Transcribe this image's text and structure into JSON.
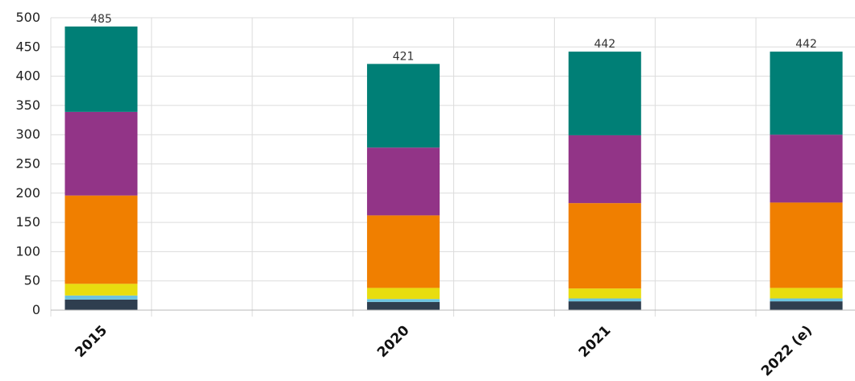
{
  "chart_data": {
    "type": "bar",
    "stacked": true,
    "categories": [
      "2015",
      "2020",
      "2021",
      "2022 (e)"
    ],
    "slot_count": 8,
    "category_slots": [
      0,
      3,
      5,
      7
    ],
    "series": [
      {
        "color": "#2f3e4f",
        "values": [
          18,
          14,
          15,
          15
        ]
      },
      {
        "color": "#6cc3e0",
        "values": [
          7,
          5,
          5,
          5
        ]
      },
      {
        "color": "#e8dd0f",
        "values": [
          20,
          19,
          17,
          18
        ]
      },
      {
        "color": "#f07f00",
        "values": [
          151,
          124,
          146,
          146
        ]
      },
      {
        "color": "#923487",
        "values": [
          143,
          116,
          116,
          116
        ]
      },
      {
        "color": "#007f76",
        "values": [
          146,
          143,
          143,
          142
        ]
      }
    ],
    "totals": [
      "485",
      "421",
      "442",
      "442"
    ],
    "ylim": [
      0,
      500
    ],
    "yticks": [
      "0",
      "50",
      "100",
      "150",
      "200",
      "250",
      "300",
      "350",
      "400",
      "450",
      "500"
    ],
    "grid": true,
    "legend": "none"
  }
}
